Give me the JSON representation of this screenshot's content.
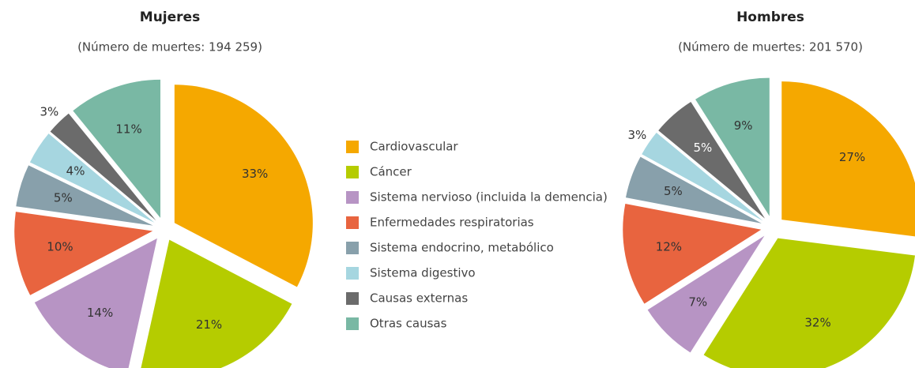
{
  "chart_data": [
    {
      "type": "pie",
      "title": "Mujeres",
      "subtitle": "(Número de muertes: 194 259)",
      "categories": [
        "Cardiovascular",
        "Cáncer",
        "Sistema nervioso (incluida la demencia)",
        "Enfermedades respiratorias",
        "Sistema endocrino, metabólico",
        "Sistema digestivo",
        "Causas externas",
        "Otras causas"
      ],
      "colors": [
        "#f5a800",
        "#b5cc00",
        "#b794c4",
        "#e8643f",
        "#88a0ab",
        "#a6d6e0",
        "#6b6b6b",
        "#79b8a4"
      ],
      "values": [
        33,
        21,
        14,
        10,
        5,
        4,
        3,
        11
      ],
      "value_labels": [
        "33%",
        "21%",
        "14%",
        "10%",
        "5%",
        "4%",
        "3%",
        "11%"
      ]
    },
    {
      "type": "pie",
      "title": "Hombres",
      "subtitle": "(Número de muertes: 201 570)",
      "values": [
        27,
        32,
        7,
        12,
        5,
        3,
        5,
        9
      ],
      "value_labels": [
        "27%",
        "32%",
        "7%",
        "12%",
        "5%",
        "3%",
        "5%",
        "9%"
      ]
    }
  ]
}
